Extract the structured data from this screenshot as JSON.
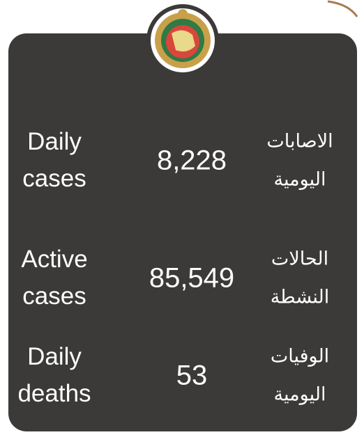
{
  "rows": [
    {
      "label": [
        "Daily",
        "cases"
      ],
      "value": "8,228",
      "arabic": [
        "الاصابات",
        "اليومية"
      ]
    },
    {
      "label": [
        "Active",
        "cases"
      ],
      "value": "85,549",
      "arabic": [
        "الحالات",
        "النشطة"
      ]
    },
    {
      "label": [
        "Daily",
        "deaths"
      ],
      "value": "53",
      "arabic": [
        "الوفيات",
        "اليومية"
      ]
    }
  ]
}
